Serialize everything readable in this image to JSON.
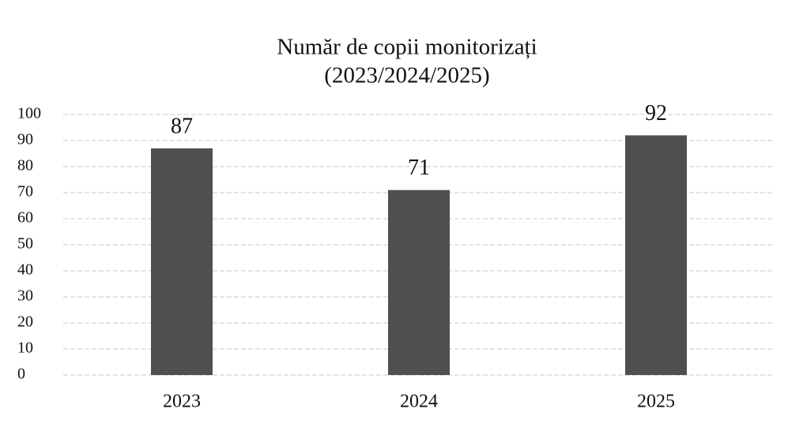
{
  "chart_data": {
    "type": "bar",
    "title": "Număr de copii monitorizați",
    "subtitle": "(2023/2024/2025)",
    "categories": [
      "2023",
      "2024",
      "2025"
    ],
    "values": [
      87,
      71,
      92
    ],
    "color": "#4f4f4f",
    "ylim": [
      0,
      100
    ],
    "yticks": [
      0,
      10,
      20,
      30,
      40,
      50,
      60,
      70,
      80,
      90,
      100
    ],
    "grid": true
  }
}
